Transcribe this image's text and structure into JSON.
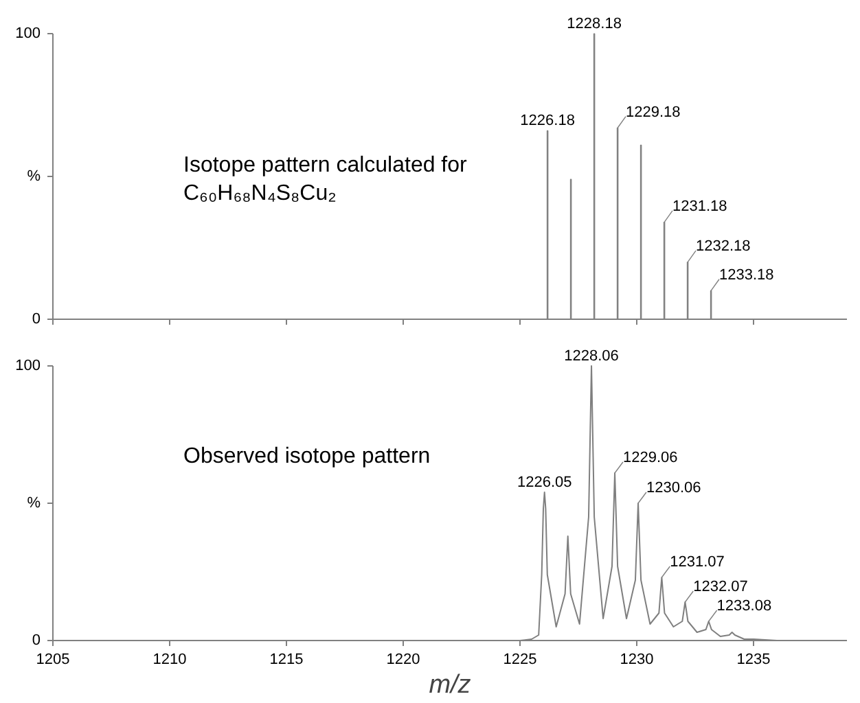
{
  "chart_data": [
    {
      "type": "bar",
      "x": [
        1226.18,
        1227.18,
        1228.18,
        1229.18,
        1230.18,
        1231.18,
        1232.18,
        1233.18
      ],
      "series": [
        {
          "color": "#7f7f7f",
          "values": [
            66,
            49,
            100,
            67,
            61,
            34,
            20,
            10
          ]
        }
      ],
      "xlim": [
        1205,
        1239
      ],
      "xticks": [
        1205,
        1210,
        1215,
        1220,
        1225,
        1230,
        1235
      ],
      "ylim": [
        0,
        100
      ],
      "yticks": [
        0,
        {
          "value": 50,
          "label": "%"
        },
        100
      ],
      "tick_labels": "y",
      "annotations": [
        "Isotope pattern calculated for\nC₆₀H₆₈N₄S₈Cu₂",
        {
          "text": "1226.18",
          "x": 1226.18,
          "y": 66
        },
        {
          "text": "1228.18",
          "x": 1228.18,
          "y": 100
        },
        {
          "text": "1229.18",
          "x": 1229.18,
          "y": 67
        },
        {
          "text": "1231.18",
          "x": 1231.18,
          "y": 34
        },
        {
          "text": "1232.18",
          "x": 1232.18,
          "y": 20
        },
        {
          "text": "1233.18",
          "x": 1233.18,
          "y": 10
        }
      ]
    },
    {
      "type": "line",
      "xlabel": "m/z",
      "x": [
        1205,
        1225.0,
        1225.5,
        1225.8,
        1225.93,
        1226.0,
        1226.05,
        1226.1,
        1226.17,
        1226.55,
        1226.93,
        1227.05,
        1227.17,
        1227.55,
        1227.94,
        1228.06,
        1228.18,
        1228.56,
        1228.94,
        1229.06,
        1229.18,
        1229.56,
        1229.94,
        1230.06,
        1230.18,
        1230.57,
        1230.95,
        1231.07,
        1231.19,
        1231.57,
        1231.95,
        1232.07,
        1232.19,
        1232.58,
        1232.96,
        1233.08,
        1233.2,
        1233.58,
        1233.96,
        1234.08,
        1234.2,
        1234.6,
        1235,
        1236,
        1239
      ],
      "series": [
        {
          "color": "#7f7f7f",
          "values": [
            0,
            0,
            0.5,
            2,
            24,
            48,
            54,
            48,
            24,
            5,
            17,
            38,
            17,
            6,
            45,
            100,
            45,
            8,
            27,
            61,
            27,
            8,
            22,
            50,
            22,
            6,
            10,
            23,
            10,
            5,
            7,
            14,
            7,
            3,
            4,
            7,
            4,
            1.5,
            2,
            3,
            2,
            0.5,
            0.5,
            0,
            0
          ]
        }
      ],
      "xlim": [
        1205,
        1239
      ],
      "xticks": [
        1205,
        1210,
        1215,
        1220,
        1225,
        1230,
        1235
      ],
      "ylim": [
        0,
        100
      ],
      "yticks": [
        0,
        {
          "value": 50,
          "label": "%"
        },
        100
      ],
      "annotations": [
        "Observed isotope pattern",
        {
          "text": "1226.05",
          "x": 1226.05,
          "y": 54
        },
        {
          "text": "1228.06",
          "x": 1228.06,
          "y": 100
        },
        {
          "text": "1229.06",
          "x": 1229.06,
          "y": 61
        },
        {
          "text": "1230.06",
          "x": 1230.06,
          "y": 50
        },
        {
          "text": "1231.07",
          "x": 1231.07,
          "y": 23
        },
        {
          "text": "1232.07",
          "x": 1232.07,
          "y": 14
        },
        {
          "text": "1233.08",
          "x": 1233.08,
          "y": 7
        }
      ]
    }
  ]
}
